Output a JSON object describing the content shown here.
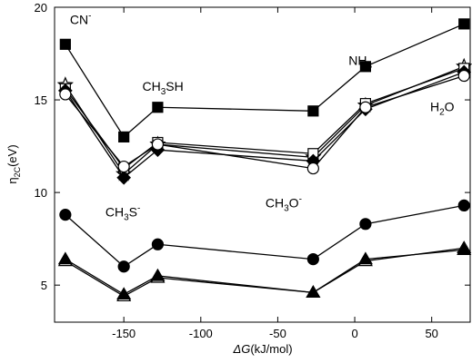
{
  "chart_data": {
    "type": "line",
    "xlabel_main": "ΔG",
    "xlabel_unit": "(kJ/mol)",
    "ylabel_main": "η",
    "ylabel_sub": "2C",
    "ylabel_unit": "(eV)",
    "xlim": [
      -195,
      75
    ],
    "ylim": [
      3,
      20
    ],
    "xticks": [
      -150,
      -100,
      -50,
      0,
      50
    ],
    "yticks": [
      5,
      10,
      15,
      20
    ],
    "x": [
      -188,
      -150,
      -128,
      -27,
      7,
      71
    ],
    "series": [
      {
        "marker": "filled-square",
        "values": [
          18.0,
          13.0,
          14.6,
          14.4,
          16.8,
          19.1
        ]
      },
      {
        "marker": "open-star",
        "values": [
          15.8,
          11.0,
          12.6,
          11.9,
          14.7,
          16.8
        ]
      },
      {
        "marker": "open-square",
        "values": [
          15.6,
          11.3,
          12.7,
          12.1,
          14.8,
          16.7
        ]
      },
      {
        "marker": "filled-diamond",
        "values": [
          15.5,
          10.8,
          12.3,
          11.7,
          14.5,
          16.5
        ]
      },
      {
        "marker": "open-circle",
        "values": [
          15.3,
          11.4,
          12.6,
          11.3,
          14.6,
          16.3
        ]
      },
      {
        "marker": "filled-circle",
        "values": [
          8.8,
          6.0,
          7.2,
          6.4,
          8.3,
          9.3
        ]
      },
      {
        "marker": "open-triangle",
        "values": [
          6.3,
          4.4,
          5.4,
          4.6,
          6.3,
          7.0
        ]
      },
      {
        "marker": "filled-triangle",
        "values": [
          6.4,
          4.5,
          5.5,
          4.6,
          6.4,
          6.9
        ]
      }
    ],
    "annotations": [
      {
        "main": "CN",
        "sup": "-",
        "x": -185,
        "y": 19.1
      },
      {
        "main": "CH",
        "sub": "3",
        "rest": "SH",
        "x": -138,
        "y": 15.5
      },
      {
        "main": "NH",
        "sub": "3",
        "x": -4,
        "y": 16.9
      },
      {
        "main": "H",
        "sub": "2",
        "rest": "O",
        "x": 49,
        "y": 14.4
      },
      {
        "main": "CH",
        "sub": "3",
        "rest": "S",
        "sup": "-",
        "x": -162,
        "y": 8.7
      },
      {
        "main": "CH",
        "sub": "3",
        "rest": "O",
        "sup": "-",
        "x": -58,
        "y": 9.2
      }
    ]
  }
}
